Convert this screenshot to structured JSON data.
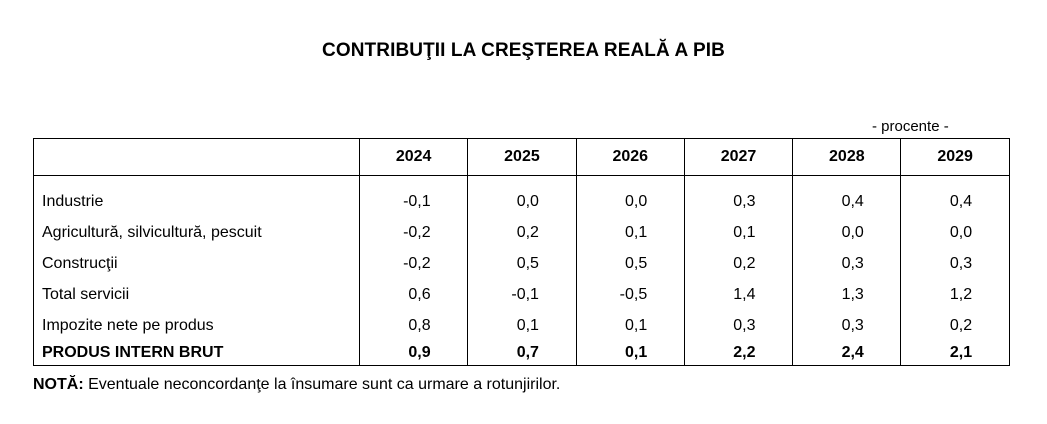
{
  "title": "CONTRIBUŢII LA CREŞTEREA REALĂ A PIB",
  "unit": "- procente -",
  "table": {
    "header_label": "",
    "years": [
      "2024",
      "2025",
      "2026",
      "2027",
      "2028",
      "2029"
    ],
    "rows": [
      {
        "label": "Industrie",
        "values": [
          "-0,1",
          "0,0",
          "0,0",
          "0,3",
          "0,4",
          "0,4"
        ],
        "bold": false
      },
      {
        "label": "Agricultură, silvicultură, pescuit",
        "values": [
          "-0,2",
          "0,2",
          "0,1",
          "0,1",
          "0,0",
          "0,0"
        ],
        "bold": false
      },
      {
        "label": "Construcţii",
        "values": [
          "-0,2",
          "0,5",
          "0,5",
          "0,2",
          "0,3",
          "0,3"
        ],
        "bold": false
      },
      {
        "label": "Total servicii",
        "values": [
          "0,6",
          "-0,1",
          "-0,5",
          "1,4",
          "1,3",
          "1,2"
        ],
        "bold": false
      },
      {
        "label": "Impozite nete pe produs",
        "values": [
          "0,8",
          "0,1",
          "0,1",
          "0,3",
          "0,3",
          "0,2"
        ],
        "bold": false
      },
      {
        "label": "PRODUS INTERN BRUT",
        "values": [
          "0,9",
          "0,7",
          "0,1",
          "2,2",
          "2,4",
          "2,1"
        ],
        "bold": true
      }
    ]
  },
  "note": {
    "prefix": "NOTĂ:",
    "text": " Eventuale neconcordanţe la însumare sunt ca urmare a rotunjirilor."
  }
}
